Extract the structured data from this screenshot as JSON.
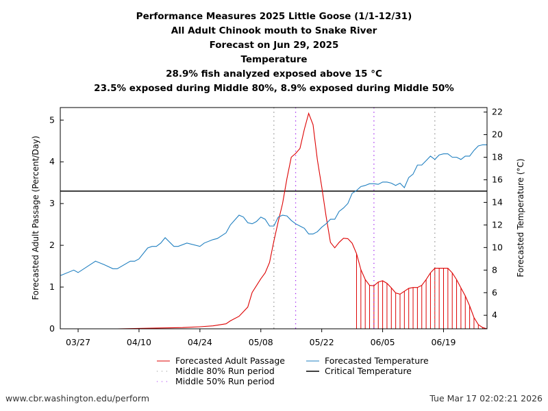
{
  "chart_data": {
    "type": "line",
    "title_lines": [
      "Performance Measures 2025 Little Goose (1/1-12/31)",
      "All Adult Chinook mouth to Snake River",
      "Forecast on Jun 29, 2025",
      "Temperature",
      "28.9% fish analyzed exposed above 15 °C",
      "23.5% exposed during Middle 80%, 8.9% exposed during Middle 50%"
    ],
    "ylabel_left": "Forecasted Adult Passage (Percent/Day)",
    "ylabel_right": "Forecasted Temperature (°C)",
    "ylim_left": [
      0,
      5.3
    ],
    "ylim_right": [
      2.8,
      22.4
    ],
    "xlim": [
      "03/23",
      "06/29"
    ],
    "x_ticks": [
      "03/27",
      "04/10",
      "04/24",
      "05/08",
      "05/22",
      "06/05",
      "06/19"
    ],
    "y_ticks_left": [
      0,
      1,
      2,
      3,
      4,
      5
    ],
    "y_ticks_right": [
      4,
      6,
      8,
      10,
      12,
      14,
      16,
      18,
      20,
      22
    ],
    "critical_temperature": 15,
    "middle_80_period": [
      "05/11",
      "06/17"
    ],
    "middle_50_period": [
      "05/16",
      "06/03"
    ],
    "series": [
      {
        "name": "Forecasted Adult Passage",
        "axis": "left",
        "color": "#dd0000",
        "points": [
          [
            "03/23",
            0
          ],
          [
            "03/30",
            0
          ],
          [
            "04/05",
            0
          ],
          [
            "04/10",
            0.01
          ],
          [
            "04/15",
            0.02
          ],
          [
            "04/20",
            0.03
          ],
          [
            "04/24",
            0.05
          ],
          [
            "04/27",
            0.07
          ],
          [
            "04/30",
            0.12
          ],
          [
            "05/01",
            0.19
          ],
          [
            "05/03",
            0.3
          ],
          [
            "05/05",
            0.52
          ],
          [
            "05/06",
            0.87
          ],
          [
            "05/08",
            1.2
          ],
          [
            "05/09",
            1.34
          ],
          [
            "05/10",
            1.59
          ],
          [
            "05/11",
            2.1
          ],
          [
            "05/12",
            2.57
          ],
          [
            "05/13",
            3.0
          ],
          [
            "05/14",
            3.6
          ],
          [
            "05/15",
            4.11
          ],
          [
            "05/16",
            4.2
          ],
          [
            "05/17",
            4.32
          ],
          [
            "05/18",
            4.78
          ],
          [
            "05/19",
            5.16
          ],
          [
            "05/20",
            4.89
          ],
          [
            "05/21",
            4.05
          ],
          [
            "05/22",
            3.4
          ],
          [
            "05/23",
            2.7
          ],
          [
            "05/24",
            2.07
          ],
          [
            "05/25",
            1.94
          ],
          [
            "05/26",
            2.07
          ],
          [
            "05/27",
            2.17
          ],
          [
            "05/28",
            2.16
          ],
          [
            "05/29",
            2.05
          ],
          [
            "05/30",
            1.8
          ],
          [
            "05/31",
            1.42
          ],
          [
            "06/01",
            1.18
          ],
          [
            "06/02",
            1.04
          ],
          [
            "06/03",
            1.03
          ],
          [
            "06/04",
            1.12
          ],
          [
            "06/05",
            1.15
          ],
          [
            "06/06",
            1.09
          ],
          [
            "06/07",
            0.98
          ],
          [
            "06/08",
            0.86
          ],
          [
            "06/09",
            0.83
          ],
          [
            "06/10",
            0.9
          ],
          [
            "06/11",
            0.97
          ],
          [
            "06/12",
            0.99
          ],
          [
            "06/13",
            0.99
          ],
          [
            "06/14",
            1.04
          ],
          [
            "06/15",
            1.18
          ],
          [
            "06/16",
            1.34
          ],
          [
            "06/17",
            1.45
          ],
          [
            "06/18",
            1.45
          ],
          [
            "06/19",
            1.45
          ],
          [
            "06/20",
            1.45
          ],
          [
            "06/21",
            1.34
          ],
          [
            "06/22",
            1.18
          ],
          [
            "06/23",
            0.98
          ],
          [
            "06/24",
            0.79
          ],
          [
            "06/25",
            0.55
          ],
          [
            "06/26",
            0.27
          ],
          [
            "06/27",
            0.1
          ],
          [
            "06/28",
            0.03
          ],
          [
            "06/29",
            0.0
          ]
        ]
      },
      {
        "name": "Forecasted Temperature",
        "axis": "right",
        "color": "#1f7fc0",
        "points": [
          [
            "03/23",
            7.53
          ],
          [
            "03/26",
            8.0
          ],
          [
            "03/27",
            7.78
          ],
          [
            "03/31",
            8.79
          ],
          [
            "04/02",
            8.48
          ],
          [
            "04/04",
            8.12
          ],
          [
            "04/05",
            8.12
          ],
          [
            "04/08",
            8.79
          ],
          [
            "04/09",
            8.79
          ],
          [
            "04/10",
            8.99
          ],
          [
            "04/12",
            9.96
          ],
          [
            "04/13",
            10.1
          ],
          [
            "04/14",
            10.1
          ],
          [
            "04/15",
            10.4
          ],
          [
            "04/16",
            10.87
          ],
          [
            "04/18",
            10.1
          ],
          [
            "04/19",
            10.1
          ],
          [
            "04/21",
            10.4
          ],
          [
            "04/24",
            10.1
          ],
          [
            "04/25",
            10.4
          ],
          [
            "04/27",
            10.7
          ],
          [
            "04/28",
            10.8
          ],
          [
            "04/30",
            11.3
          ],
          [
            "05/01",
            12.0
          ],
          [
            "05/03",
            12.87
          ],
          [
            "05/04",
            12.7
          ],
          [
            "05/05",
            12.2
          ],
          [
            "05/06",
            12.1
          ],
          [
            "05/07",
            12.3
          ],
          [
            "05/08",
            12.7
          ],
          [
            "05/09",
            12.5
          ],
          [
            "05/10",
            11.9
          ],
          [
            "05/11",
            11.9
          ],
          [
            "05/12",
            12.7
          ],
          [
            "05/13",
            12.87
          ],
          [
            "05/14",
            12.8
          ],
          [
            "05/15",
            12.4
          ],
          [
            "05/16",
            12.1
          ],
          [
            "05/17",
            11.9
          ],
          [
            "05/18",
            11.7
          ],
          [
            "05/19",
            11.2
          ],
          [
            "05/20",
            11.2
          ],
          [
            "05/21",
            11.4
          ],
          [
            "05/22",
            11.8
          ],
          [
            "05/23",
            12.1
          ],
          [
            "05/24",
            12.5
          ],
          [
            "05/25",
            12.5
          ],
          [
            "05/26",
            13.2
          ],
          [
            "05/27",
            13.5
          ],
          [
            "05/28",
            13.9
          ],
          [
            "05/29",
            14.8
          ],
          [
            "05/30",
            15.05
          ],
          [
            "05/31",
            15.4
          ],
          [
            "06/01",
            15.5
          ],
          [
            "06/02",
            15.65
          ],
          [
            "06/03",
            15.65
          ],
          [
            "06/04",
            15.6
          ],
          [
            "06/05",
            15.8
          ],
          [
            "06/06",
            15.8
          ],
          [
            "06/07",
            15.7
          ],
          [
            "06/08",
            15.5
          ],
          [
            "06/09",
            15.7
          ],
          [
            "06/10",
            15.3
          ],
          [
            "06/11",
            16.2
          ],
          [
            "06/12",
            16.5
          ],
          [
            "06/13",
            17.3
          ],
          [
            "06/14",
            17.3
          ],
          [
            "06/15",
            17.7
          ],
          [
            "06/16",
            18.1
          ],
          [
            "06/17",
            17.8
          ],
          [
            "06/18",
            18.2
          ],
          [
            "06/19",
            18.3
          ],
          [
            "06/20",
            18.3
          ],
          [
            "06/21",
            18.0
          ],
          [
            "06/22",
            18.0
          ],
          [
            "06/23",
            17.8
          ],
          [
            "06/24",
            18.1
          ],
          [
            "06/25",
            18.1
          ],
          [
            "06/26",
            18.6
          ],
          [
            "06/27",
            19.0
          ],
          [
            "06/28",
            19.1
          ],
          [
            "06/29",
            19.1
          ]
        ]
      }
    ],
    "legend": [
      {
        "label": "Forecasted Adult Passage",
        "color": "#dd0000",
        "style": "solid"
      },
      {
        "label": "Forecasted Temperature",
        "color": "#1f7fc0",
        "style": "solid"
      },
      {
        "label": "Middle 80% Run period",
        "color": "#888888",
        "style": "dotted"
      },
      {
        "label": "Critical Temperature",
        "color": "#000000",
        "style": "solid"
      },
      {
        "label": "Middle 50% Run period",
        "color": "#a020f0",
        "style": "dotted"
      }
    ],
    "legend_position": "bottom",
    "grid": false
  },
  "footer": {
    "url": "www.cbr.washington.edu/perform",
    "timestamp": "Tue Mar 17 02:02:21 2026"
  }
}
